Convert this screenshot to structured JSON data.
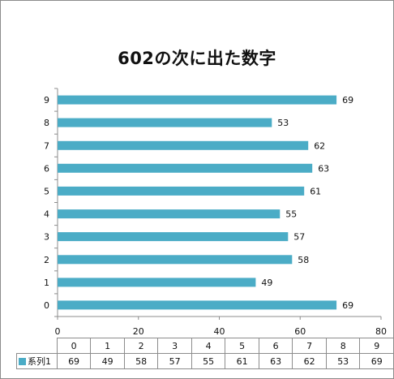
{
  "chart_data": {
    "type": "bar",
    "orientation": "horizontal",
    "title": "602の次に出た数字",
    "categories": [
      "0",
      "1",
      "2",
      "3",
      "4",
      "5",
      "6",
      "7",
      "8",
      "9"
    ],
    "series": [
      {
        "name": "系列1",
        "values": [
          69,
          49,
          58,
          57,
          55,
          61,
          63,
          62,
          53,
          69
        ],
        "color": "#4bacc6"
      }
    ],
    "xlim": [
      0,
      80
    ],
    "x_ticks": [
      0,
      20,
      40,
      60,
      80
    ],
    "data_labels": true,
    "grid": false,
    "legend": "data-table"
  }
}
